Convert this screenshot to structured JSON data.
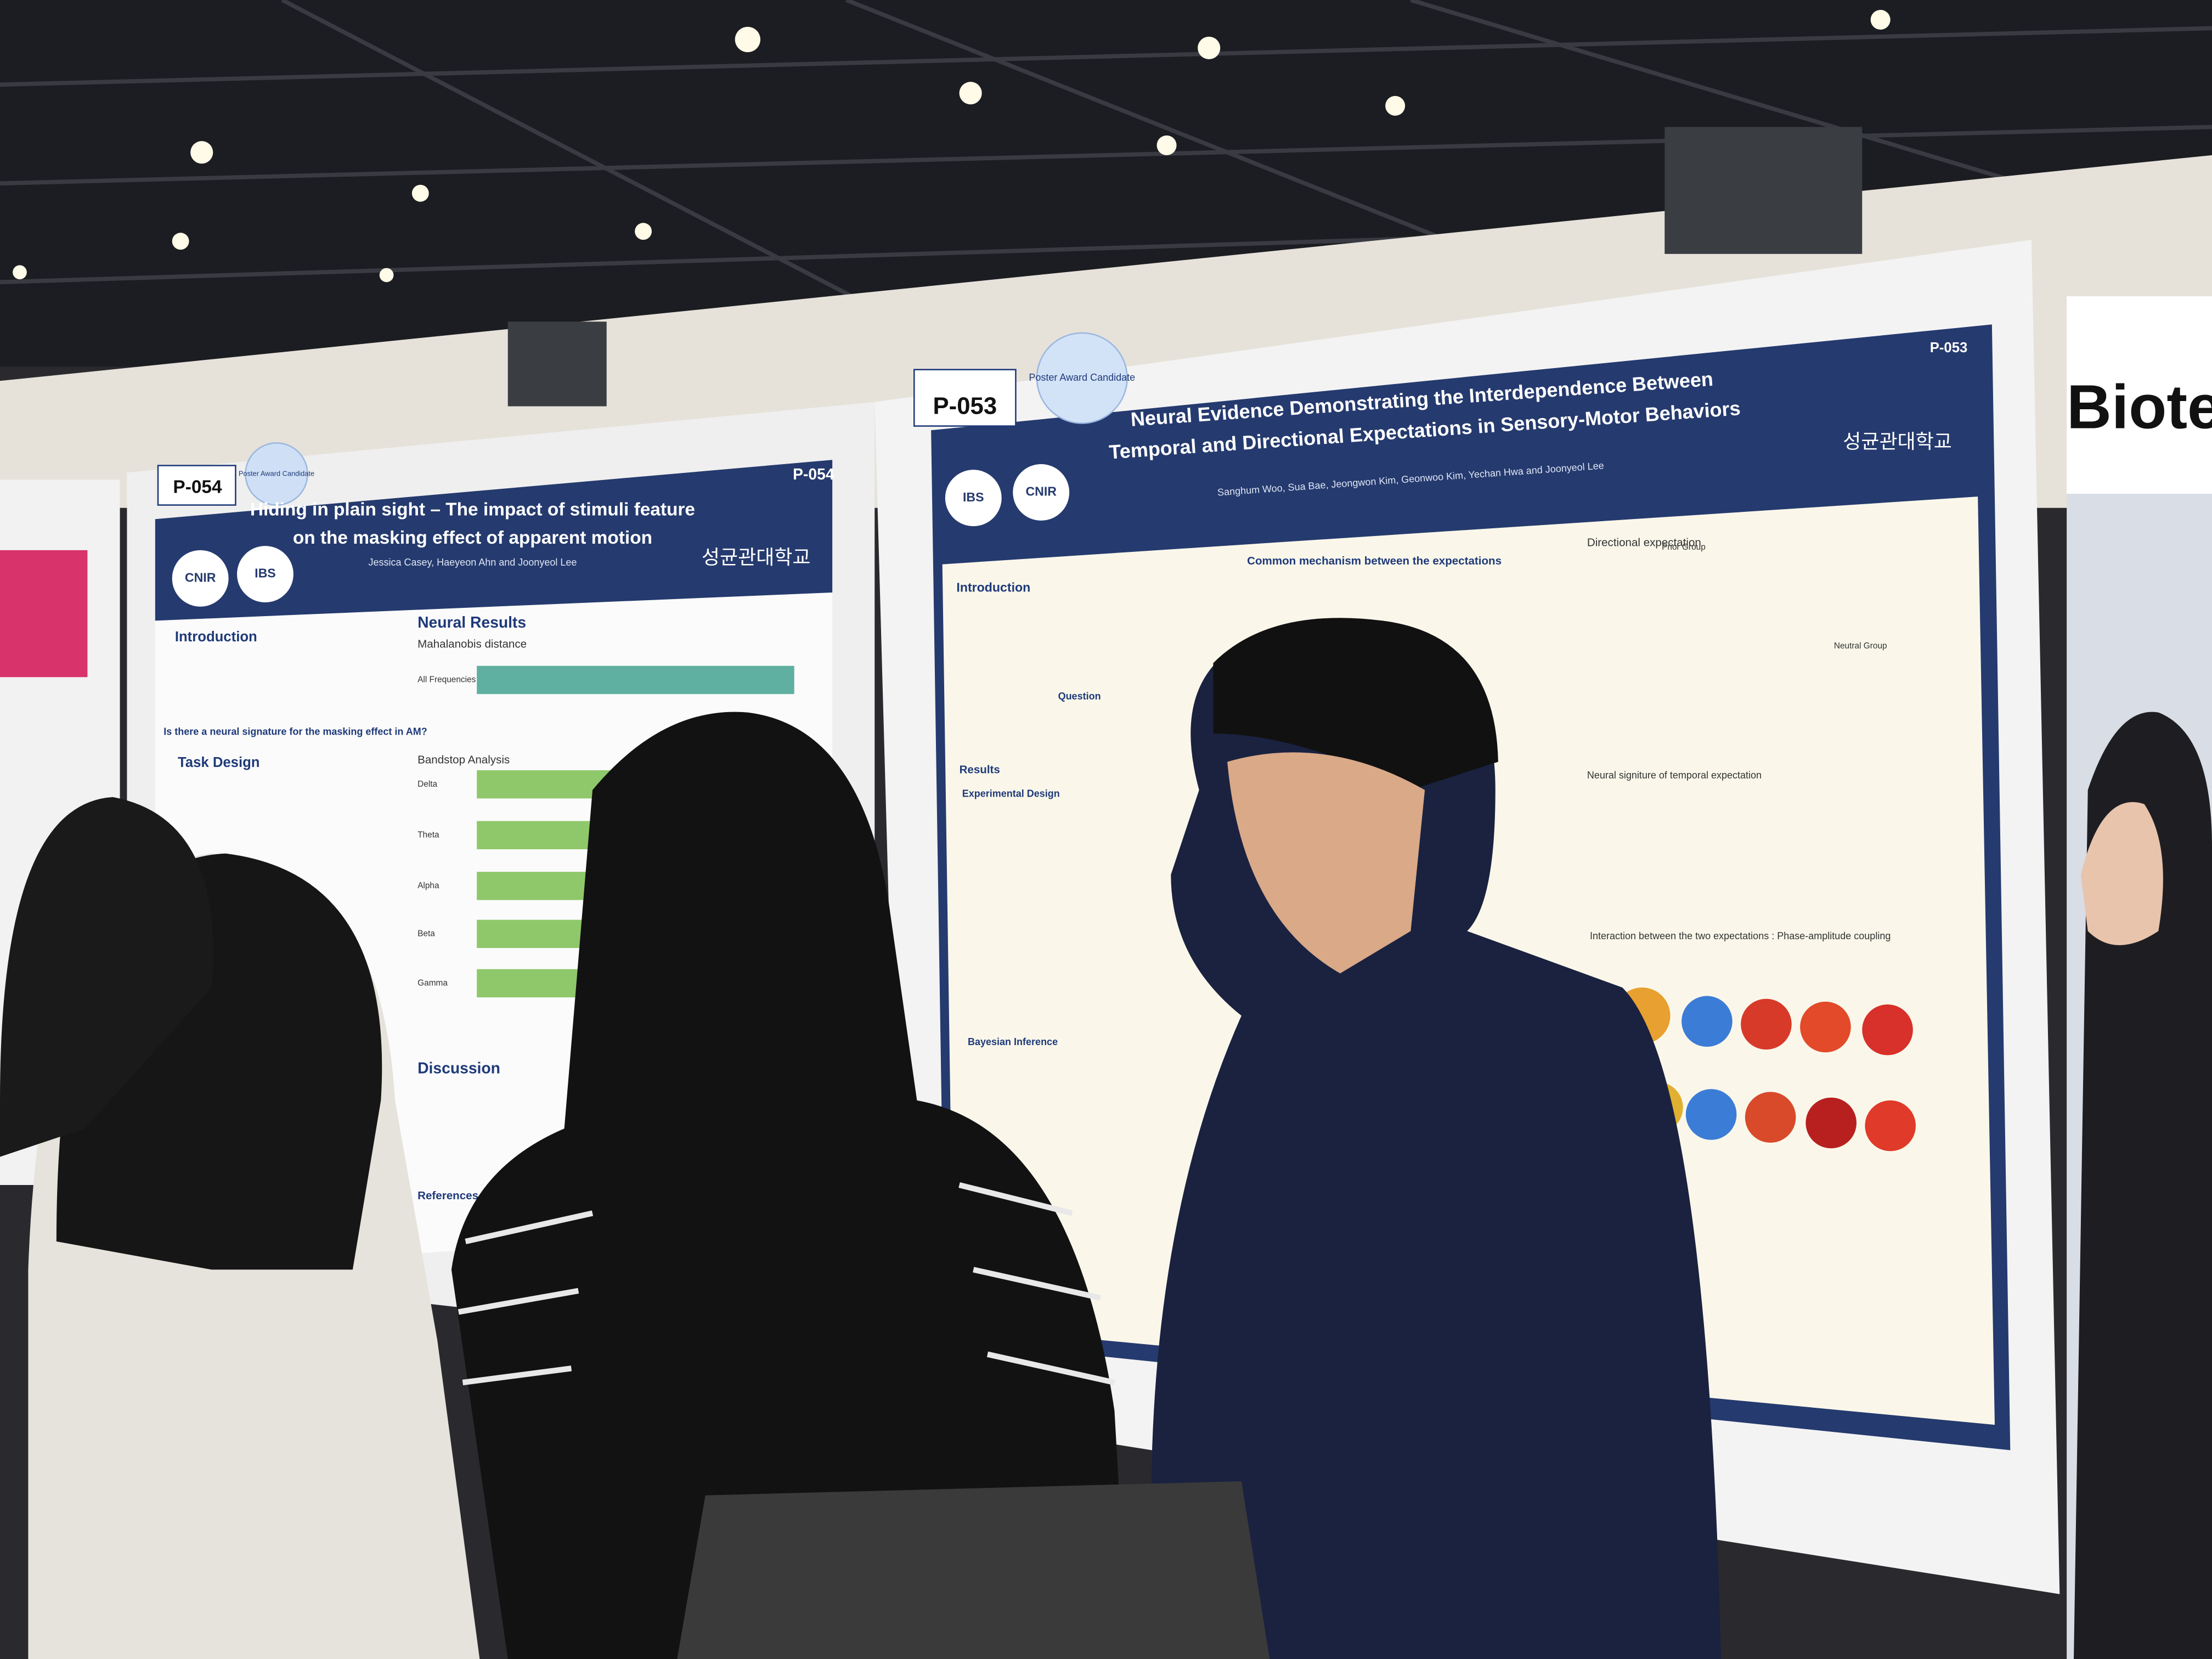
{
  "sign": "Biote",
  "posters": [
    {
      "number": "P-054",
      "award": "Poster Award Candidate",
      "title": [
        "Hiding in plain sight – The impact of stimuli feature",
        "on the masking effect of apparent motion"
      ],
      "authors": "Jessica Casey, Haeyeon Ahn and Joonyeol Lee",
      "logos": [
        "CNIR",
        "IBS"
      ],
      "institution": "성균관대학교",
      "sections": [
        "Introduction",
        "Task Design",
        "Neural Results",
        "Mahalanobis distance",
        "Bandstop Analysis",
        "Discussion",
        "References"
      ],
      "question": "Is there a neural signature for the masking effect in AM?",
      "bands": [
        "All Frequencies",
        "Delta",
        "Theta",
        "Alpha",
        "Beta",
        "Gamma"
      ]
    },
    {
      "number": "P-053",
      "award": "Poster Award Candidate",
      "title": [
        "Neural Evidence Demonstrating the Interdependence Between",
        "Temporal and Directional Expectations in Sensory-Motor Behaviors"
      ],
      "authors": "Sanghum Woo, Sua Bae, Jeongwon Kim, Geonwoo Kim, Yechan Hwa and Joonyeol Lee",
      "logos": [
        "IBS",
        "CNIR"
      ],
      "institution": "성균관대학교",
      "sections": [
        "Introduction",
        "Common mechanism between the expectations",
        "Directional expectation",
        "Question",
        "Results",
        "Experimental Design",
        "Neural signiture of temporal expectation",
        "Interaction between the two expectations : Phase-amplitude coupling",
        "Bayesian Inference"
      ],
      "groups": [
        "Prior Group",
        "Neutral Group"
      ]
    }
  ]
}
